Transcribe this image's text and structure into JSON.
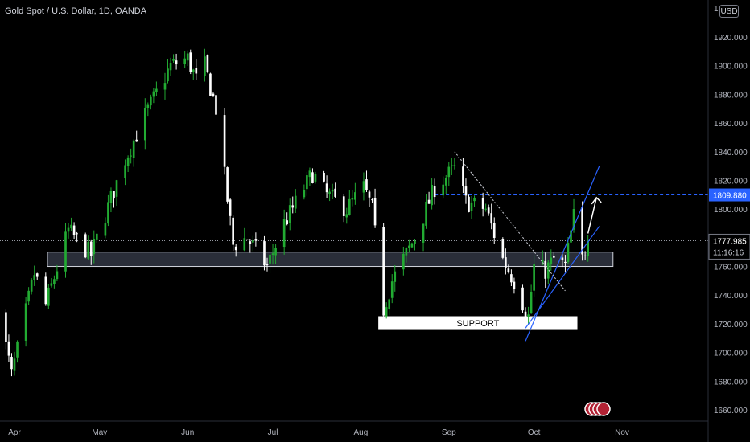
{
  "header": {
    "symbol_title": "Gold Spot / U.S. Dollar, 1D, OANDA",
    "currency": "USD"
  },
  "price_axis": {
    "ticks": [
      "1660.000",
      "1680.000",
      "1700.000",
      "1720.000",
      "1740.000",
      "1760.000",
      "1780.000",
      "1800.000",
      "1820.000",
      "1840.000",
      "1860.000",
      "1880.000",
      "1900.000",
      "1920.000"
    ],
    "top_partial_label": "19"
  },
  "badges": {
    "target_price": "1809.880",
    "last_price": "1777.985",
    "countdown": "11:16:16"
  },
  "annotations": {
    "support_label": "SUPPORT"
  },
  "colors": {
    "up": "#22ab32",
    "down": "#ffffff",
    "channel": "#2962ff",
    "target_line": "#2962ff",
    "zone_fill": "#2a2e39"
  },
  "chart_data": {
    "type": "candlestick",
    "title": "Gold Spot / U.S. Dollar, 1D, OANDA",
    "x_axis": {
      "ticks": [
        "Apr",
        "May",
        "Jun",
        "Jul",
        "Aug",
        "Sep",
        "Oct",
        "Nov"
      ],
      "tick_dates": [
        "2021-04-01",
        "2021-05-01",
        "2021-06-01",
        "2021-07-01",
        "2021-08-01",
        "2021-09-01",
        "2021-10-01",
        "2021-11-01"
      ],
      "range": [
        "2021-03-26",
        "2021-11-05"
      ]
    },
    "y_axis": {
      "range": [
        1650,
        1950
      ],
      "scale": "linear"
    },
    "grid": false,
    "last_price": 1777.985,
    "target_level": 1809.88,
    "resistance_zone": [
      1760,
      1770
    ],
    "support_zone": [
      1716,
      1725
    ],
    "anchors": [
      {
        "d": "2021-03-26",
        "c": 1735
      },
      {
        "d": "2021-03-31",
        "c": 1684
      },
      {
        "d": "2021-04-08",
        "c": 1755
      },
      {
        "d": "2021-04-12",
        "c": 1733
      },
      {
        "d": "2021-04-20",
        "c": 1785
      },
      {
        "d": "2021-04-28",
        "c": 1768
      },
      {
        "d": "2021-05-10",
        "c": 1835
      },
      {
        "d": "2021-05-17",
        "c": 1865
      },
      {
        "d": "2021-05-26",
        "c": 1900
      },
      {
        "d": "2021-06-01",
        "c": 1905
      },
      {
        "d": "2021-06-04",
        "c": 1890
      },
      {
        "d": "2021-06-07",
        "c": 1900
      },
      {
        "d": "2021-06-11",
        "c": 1870
      },
      {
        "d": "2021-06-17",
        "c": 1775
      },
      {
        "d": "2021-06-22",
        "c": 1780
      },
      {
        "d": "2021-06-29",
        "c": 1760
      },
      {
        "d": "2021-07-05",
        "c": 1790
      },
      {
        "d": "2021-07-15",
        "c": 1825
      },
      {
        "d": "2021-07-20",
        "c": 1810
      },
      {
        "d": "2021-07-27",
        "c": 1800
      },
      {
        "d": "2021-08-02",
        "c": 1815
      },
      {
        "d": "2021-08-05",
        "c": 1800
      },
      {
        "d": "2021-08-09",
        "c": 1730
      },
      {
        "d": "2021-08-12",
        "c": 1750
      },
      {
        "d": "2021-08-20",
        "c": 1780
      },
      {
        "d": "2021-08-27",
        "c": 1815
      },
      {
        "d": "2021-09-03",
        "c": 1828
      },
      {
        "d": "2021-09-07",
        "c": 1805
      },
      {
        "d": "2021-09-14",
        "c": 1800
      },
      {
        "d": "2021-09-20",
        "c": 1765
      },
      {
        "d": "2021-09-24",
        "c": 1750
      },
      {
        "d": "2021-09-29",
        "c": 1725
      },
      {
        "d": "2021-10-01",
        "c": 1760
      },
      {
        "d": "2021-10-05",
        "c": 1757
      },
      {
        "d": "2021-10-08",
        "c": 1765
      },
      {
        "d": "2021-10-12",
        "c": 1760
      },
      {
        "d": "2021-10-15",
        "c": 1795
      },
      {
        "d": "2021-10-18",
        "c": 1765
      },
      {
        "d": "2021-10-20",
        "c": 1778
      }
    ]
  }
}
